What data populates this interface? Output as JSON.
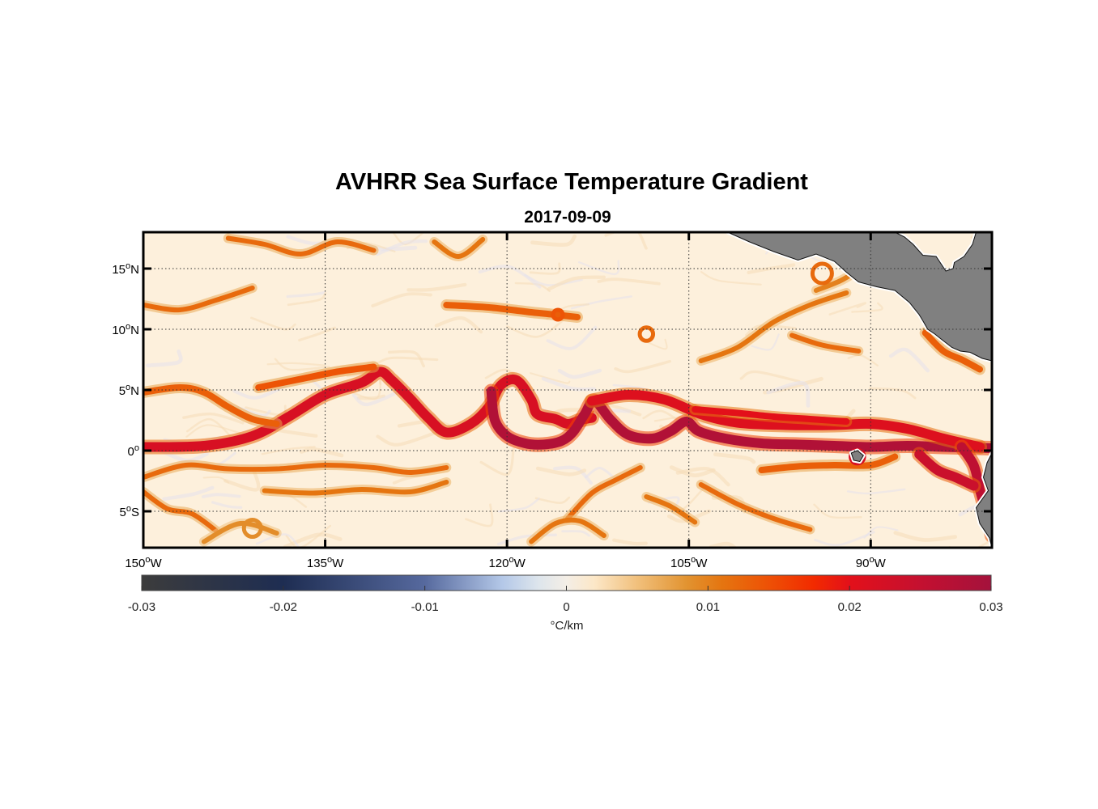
{
  "figure": {
    "title": "AVHRR Sea Surface Temperature Gradient",
    "subtitle": "2017-09-09"
  },
  "map": {
    "lon_range": [
      -150,
      -80
    ],
    "lat_range": [
      -8,
      18
    ],
    "x_ticks": [
      {
        "value": -150,
        "deg": "150",
        "hemi": "W"
      },
      {
        "value": -135,
        "deg": "135",
        "hemi": "W"
      },
      {
        "value": -120,
        "deg": "120",
        "hemi": "W"
      },
      {
        "value": -105,
        "deg": "105",
        "hemi": "W"
      },
      {
        "value": -90,
        "deg": "90",
        "hemi": "W"
      }
    ],
    "y_ticks": [
      {
        "value": 15,
        "deg": "15",
        "hemi": "N"
      },
      {
        "value": 10,
        "deg": "10",
        "hemi": "N"
      },
      {
        "value": 5,
        "deg": "5",
        "hemi": "N"
      },
      {
        "value": 0,
        "deg": "0",
        "hemi": ""
      },
      {
        "value": -5,
        "deg": "5",
        "hemi": "S"
      }
    ],
    "degree_symbol": "o",
    "grid": "dotted",
    "land_color": "#808080",
    "ocean_background": "#fdf0dc",
    "fronts": [
      {
        "level": 0.022,
        "points": [
          [
            -150,
            0.3
          ],
          [
            -145,
            0.4
          ],
          [
            -141,
            1.2
          ],
          [
            -138,
            2.8
          ],
          [
            -135,
            4.6
          ],
          [
            -132,
            5.6
          ],
          [
            -130.5,
            6.5
          ],
          [
            -129.5,
            5.8
          ],
          [
            -128,
            4.3
          ],
          [
            -126.5,
            2.7
          ],
          [
            -125,
            1.5
          ],
          [
            -123,
            2.2
          ],
          [
            -121.5,
            3.6
          ],
          [
            -120.5,
            5.4
          ],
          [
            -119.2,
            5.8
          ],
          [
            -118,
            4.2
          ],
          [
            -117.5,
            3
          ],
          [
            -116,
            2.6
          ],
          [
            -115,
            2.2
          ],
          [
            -114,
            2.5
          ],
          [
            -113,
            2.7
          ]
        ]
      },
      {
        "level": 0.028,
        "points": [
          [
            -121.3,
            4.9
          ],
          [
            -121,
            2.5
          ],
          [
            -120,
            1.2
          ],
          [
            -118.5,
            0.6
          ],
          [
            -117,
            0.5
          ],
          [
            -115.5,
            0.8
          ],
          [
            -114.5,
            1.6
          ],
          [
            -113.6,
            3
          ],
          [
            -112.8,
            4.1
          ],
          [
            -111.5,
            2.6
          ],
          [
            -110,
            1.3
          ],
          [
            -108,
            1
          ],
          [
            -106.5,
            1.6
          ],
          [
            -105.2,
            2.4
          ],
          [
            -104.2,
            1.6
          ],
          [
            -102,
            1
          ],
          [
            -99,
            0.6
          ],
          [
            -96,
            0.5
          ],
          [
            -93,
            0.4
          ],
          [
            -90,
            0.3
          ],
          [
            -87,
            0.4
          ],
          [
            -84,
            0.3
          ],
          [
            -80,
            0.2
          ]
        ]
      },
      {
        "level": 0.021,
        "points": [
          [
            -113,
            4.1
          ],
          [
            -110,
            4.6
          ],
          [
            -107,
            4.2
          ],
          [
            -104,
            3
          ],
          [
            -101,
            2.3
          ],
          [
            -97,
            2.1
          ],
          [
            -93,
            2.1
          ],
          [
            -90,
            2.2
          ],
          [
            -87,
            1.8
          ],
          [
            -84,
            1
          ],
          [
            -81,
            0.3
          ]
        ]
      },
      {
        "level": 0.02,
        "points": [
          [
            -104.5,
            3.4
          ],
          [
            -101,
            3.1
          ],
          [
            -98,
            2.8
          ],
          [
            -95,
            2.6
          ],
          [
            -92,
            2.4
          ]
        ]
      },
      {
        "level": 0.026,
        "points": [
          [
            -82.5,
            0.3
          ],
          [
            -81.5,
            -1.2
          ],
          [
            -81,
            -3.2
          ],
          [
            -80.5,
            -5
          ],
          [
            -80,
            -7
          ]
        ]
      },
      {
        "level": 0.024,
        "points": [
          [
            -86,
            -0.3
          ],
          [
            -84.5,
            -1.6
          ],
          [
            -83,
            -2.2
          ],
          [
            -81.5,
            -2.9
          ]
        ]
      },
      {
        "level": 0.013,
        "points": [
          [
            -150,
            4.8
          ],
          [
            -147,
            5.2
          ],
          [
            -145,
            4.8
          ],
          [
            -143,
            3.6
          ],
          [
            -141,
            2.6
          ],
          [
            -139,
            2.2
          ]
        ]
      },
      {
        "level": 0.014,
        "points": [
          [
            -140.5,
            5.2
          ],
          [
            -137.5,
            5.8
          ],
          [
            -134,
            6.5
          ],
          [
            -131,
            6.9
          ]
        ]
      },
      {
        "level": 0.012,
        "points": [
          [
            -150,
            -2.2
          ],
          [
            -146.5,
            -1.2
          ],
          [
            -143,
            -1.5
          ],
          [
            -139,
            -1.5
          ],
          [
            -135,
            -1.2
          ],
          [
            -131,
            -1.4
          ],
          [
            -128,
            -1.8
          ],
          [
            -125,
            -1.4
          ]
        ]
      },
      {
        "level": 0.011,
        "points": [
          [
            -140,
            -3.3
          ],
          [
            -136,
            -3.5
          ],
          [
            -132,
            -3.2
          ],
          [
            -128,
            -3.4
          ],
          [
            -125,
            -2.6
          ]
        ]
      },
      {
        "level": 0.012,
        "points": [
          [
            -150,
            -3.4
          ],
          [
            -148,
            -4.8
          ],
          [
            -146,
            -5.2
          ],
          [
            -144,
            -6.6
          ]
        ]
      },
      {
        "level": 0.012,
        "points": [
          [
            -115,
            -5.6
          ],
          [
            -113,
            -3.5
          ],
          [
            -111,
            -2.4
          ],
          [
            -109,
            -1.4
          ]
        ]
      },
      {
        "level": 0.011,
        "points": [
          [
            -118,
            -7.5
          ],
          [
            -116,
            -6
          ],
          [
            -114,
            -5.8
          ],
          [
            -112,
            -7
          ]
        ]
      },
      {
        "level": 0.012,
        "points": [
          [
            -104,
            -2.8
          ],
          [
            -101,
            -4.4
          ],
          [
            -98,
            -5.6
          ],
          [
            -95,
            -6.5
          ]
        ]
      },
      {
        "level": 0.013,
        "points": [
          [
            -99,
            -1.6
          ],
          [
            -96,
            -1.3
          ],
          [
            -93,
            -1.2
          ],
          [
            -90,
            -1.2
          ],
          [
            -88,
            -0.5
          ]
        ]
      },
      {
        "level": 0.012,
        "points": [
          [
            -150,
            12
          ],
          [
            -147,
            11.6
          ],
          [
            -144,
            12.4
          ],
          [
            -141,
            13.4
          ]
        ]
      },
      {
        "level": 0.012,
        "points": [
          [
            -143,
            17.5
          ],
          [
            -140,
            17
          ],
          [
            -137,
            16.2
          ],
          [
            -134,
            17.2
          ],
          [
            -131,
            16.5
          ]
        ]
      },
      {
        "level": 0.011,
        "points": [
          [
            -126,
            17.2
          ],
          [
            -124,
            16
          ],
          [
            -122,
            17.4
          ]
        ]
      },
      {
        "level": 0.013,
        "points": [
          [
            -125,
            12
          ],
          [
            -121.5,
            11.8
          ],
          [
            -118,
            11.4
          ],
          [
            -116,
            11.2
          ],
          [
            -114.2,
            11
          ]
        ]
      },
      {
        "level": 0.011,
        "points": [
          [
            -104,
            7.4
          ],
          [
            -101,
            8.5
          ],
          [
            -98,
            10.6
          ],
          [
            -95,
            12
          ],
          [
            -92,
            13
          ]
        ]
      },
      {
        "level": 0.012,
        "points": [
          [
            -96.5,
            9.5
          ],
          [
            -94,
            8.7
          ],
          [
            -91,
            8.2
          ]
        ]
      },
      {
        "level": 0.013,
        "points": [
          [
            -85.5,
            9.7
          ],
          [
            -84,
            8.2
          ],
          [
            -82.5,
            7.5
          ],
          [
            -81,
            6.7
          ]
        ]
      },
      {
        "level": 0.01,
        "points": [
          [
            -94.5,
            13.2
          ],
          [
            -92.5,
            14
          ],
          [
            -91,
            14.9
          ]
        ]
      },
      {
        "level": 0.009,
        "points": [
          [
            -145,
            -7.5
          ],
          [
            -142,
            -6
          ],
          [
            -139,
            -6.8
          ]
        ]
      },
      {
        "level": 0.011,
        "points": [
          [
            -108.5,
            -3.8
          ],
          [
            -106.5,
            -4.6
          ],
          [
            -104.5,
            -5.9
          ]
        ]
      }
    ],
    "rings": [
      {
        "lon": -94,
        "lat": 14.6,
        "r": 0.8,
        "level": 0.012
      },
      {
        "lon": -108.5,
        "lat": 9.6,
        "r": 0.55,
        "level": 0.012
      },
      {
        "lon": -115.8,
        "lat": 11.2,
        "r": 0.4,
        "level": 0.014
      },
      {
        "lon": -91.1,
        "lat": -0.5,
        "r": 0.55,
        "level": 0.022
      },
      {
        "lon": -141,
        "lat": -6.4,
        "r": 0.7,
        "level": 0.009
      }
    ],
    "land": [
      [
        [
          -101.8,
          18
        ],
        [
          -100,
          17.2
        ],
        [
          -98,
          16.4
        ],
        [
          -96,
          15.7
        ],
        [
          -94.5,
          16.2
        ],
        [
          -93,
          15.6
        ],
        [
          -92,
          14.7
        ],
        [
          -91,
          13.9
        ],
        [
          -89.5,
          13.5
        ],
        [
          -88,
          13.2
        ],
        [
          -86.8,
          12.2
        ],
        [
          -86,
          11.2
        ],
        [
          -85.7,
          10.7
        ],
        [
          -85.3,
          10
        ],
        [
          -84.7,
          9.6
        ],
        [
          -84.2,
          9.2
        ],
        [
          -83.3,
          8.5
        ],
        [
          -82.6,
          8.2
        ],
        [
          -81.8,
          8.1
        ],
        [
          -80.8,
          7.6
        ],
        [
          -80,
          7.4
        ],
        [
          -80,
          18
        ],
        [
          -81.3,
          18
        ],
        [
          -81.6,
          17
        ],
        [
          -82.3,
          16
        ],
        [
          -83.1,
          15.5
        ],
        [
          -83.2,
          15
        ],
        [
          -83.8,
          14.8
        ],
        [
          -84.6,
          16
        ],
        [
          -85.7,
          16.1
        ],
        [
          -86.5,
          17
        ],
        [
          -87.2,
          17.6
        ],
        [
          -88,
          18
        ]
      ],
      [
        [
          -80,
          -0.2
        ],
        [
          -80.4,
          -1
        ],
        [
          -80.7,
          -2.2
        ],
        [
          -80.3,
          -3.3
        ],
        [
          -81.3,
          -4.7
        ],
        [
          -81,
          -6
        ],
        [
          -80.2,
          -7.2
        ],
        [
          -80,
          -8
        ]
      ],
      [
        [
          -91.6,
          -0.2
        ],
        [
          -91.1,
          0
        ],
        [
          -90.6,
          -0.4
        ],
        [
          -90.9,
          -0.9
        ],
        [
          -91.4,
          -0.8
        ]
      ]
    ]
  },
  "colorbar": {
    "min": -0.03,
    "max": 0.03,
    "ticks": [
      "-0.03",
      "-0.02",
      "-0.01",
      "0",
      "0.01",
      "0.02",
      "0.03"
    ],
    "label": "°C/km",
    "stops": [
      {
        "value": -0.03,
        "color": "#3c3c3c"
      },
      {
        "value": -0.02,
        "color": "#1e2d52"
      },
      {
        "value": -0.01,
        "color": "#56699e"
      },
      {
        "value": -0.0045,
        "color": "#b4c8e8"
      },
      {
        "value": -0.002,
        "color": "#dde5ec"
      },
      {
        "value": 0.0,
        "color": "#f4eee6"
      },
      {
        "value": 0.002,
        "color": "#fce7c7"
      },
      {
        "value": 0.005,
        "color": "#f1c07c"
      },
      {
        "value": 0.0085,
        "color": "#e29330"
      },
      {
        "value": 0.011,
        "color": "#e57510"
      },
      {
        "value": 0.014,
        "color": "#ed5406"
      },
      {
        "value": 0.0175,
        "color": "#f22a00"
      },
      {
        "value": 0.02,
        "color": "#e3101a"
      },
      {
        "value": 0.025,
        "color": "#c41030"
      },
      {
        "value": 0.03,
        "color": "#a4123c"
      }
    ]
  }
}
